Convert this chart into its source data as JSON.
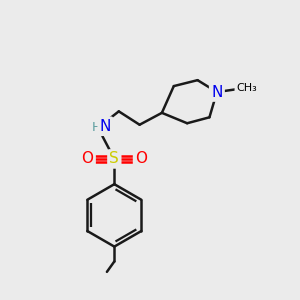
{
  "background_color": "#ebebeb",
  "atom_colors": {
    "N": "#0000ee",
    "S": "#cccc00",
    "O": "#ff0000",
    "C": "#000000",
    "H": "#5f9ea0"
  },
  "bond_color": "#1a1a1a",
  "bond_width": 1.8,
  "figsize": [
    3.0,
    3.0
  ],
  "dpi": 100
}
